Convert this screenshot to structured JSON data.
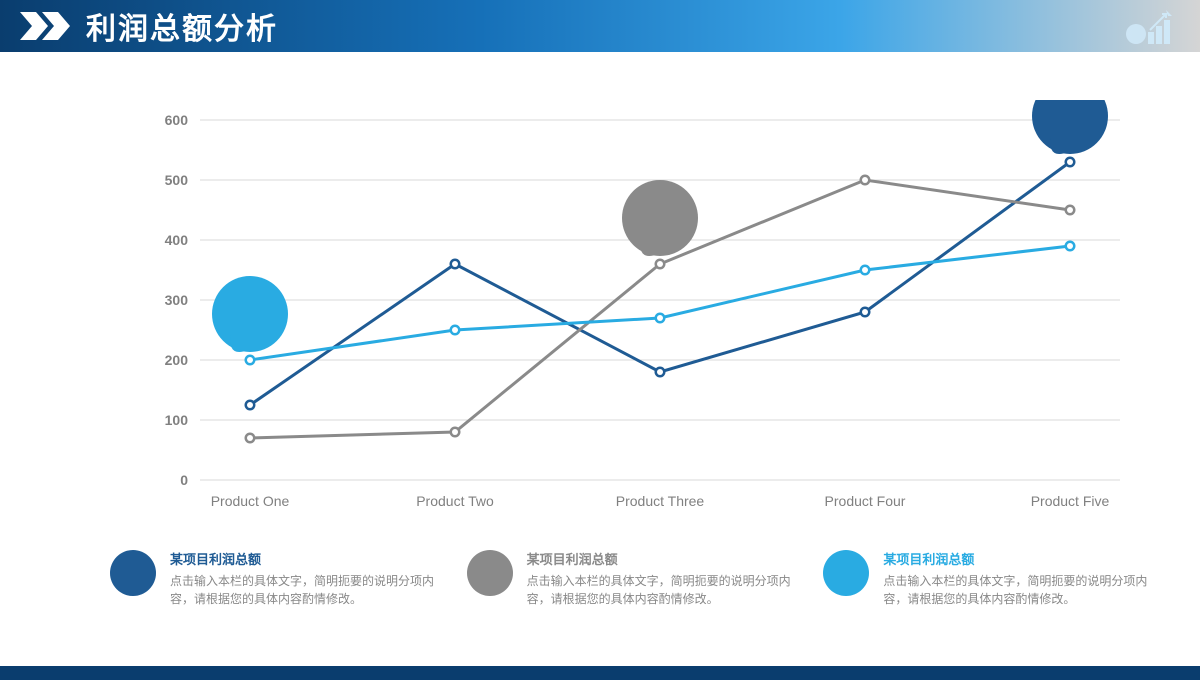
{
  "header": {
    "title": "利润总额分析"
  },
  "chart": {
    "type": "line",
    "categories": [
      "Product One",
      "Product Two",
      "Product Three",
      "Product Four",
      "Product Five"
    ],
    "ylim": [
      0,
      600
    ],
    "ytick_step": 100,
    "ytick_labels": [
      "0",
      "100",
      "200",
      "300",
      "400",
      "500",
      "600"
    ],
    "gridline_color": "#d9d9d9",
    "axis_label_color": "#808080",
    "axis_label_fontsize": 14,
    "line_width": 3,
    "marker_radius": 5.5,
    "marker_inner_radius": 3,
    "marker_fill": "#ffffff",
    "series": [
      {
        "name": "dark_blue",
        "color": "#1f5b94",
        "values": [
          125,
          360,
          180,
          280,
          530
        ]
      },
      {
        "name": "gray",
        "color": "#8a8a8a",
        "values": [
          70,
          80,
          360,
          500,
          450
        ]
      },
      {
        "name": "light_blue",
        "color": "#29abe2",
        "values": [
          200,
          250,
          270,
          350,
          390
        ]
      }
    ],
    "bubbles": [
      {
        "series": "light_blue",
        "point": 0,
        "color": "#29abe2",
        "radius": 38
      },
      {
        "series": "gray",
        "point": 2,
        "color": "#8a8a8a",
        "radius": 38
      },
      {
        "series": "dark_blue",
        "point": 4,
        "color": "#1f5b94",
        "radius": 38
      }
    ]
  },
  "legend": [
    {
      "color": "#1f5b94",
      "title_color": "#1f5b94",
      "title": "某项目利润总额",
      "desc": "点击输入本栏的具体文字，简明扼要的说明分项内容，请根据您的具体内容酌情修改。"
    },
    {
      "color": "#8a8a8a",
      "title_color": "#8a8a8a",
      "title": "某项目利润总额",
      "desc": "点击输入本栏的具体文字，简明扼要的说明分项内容，请根据您的具体内容酌情修改。"
    },
    {
      "color": "#29abe2",
      "title_color": "#29abe2",
      "title": "某项目利润总额",
      "desc": "点击输入本栏的具体文字，简明扼要的说明分项内容，请根据您的具体内容酌情修改。"
    }
  ]
}
